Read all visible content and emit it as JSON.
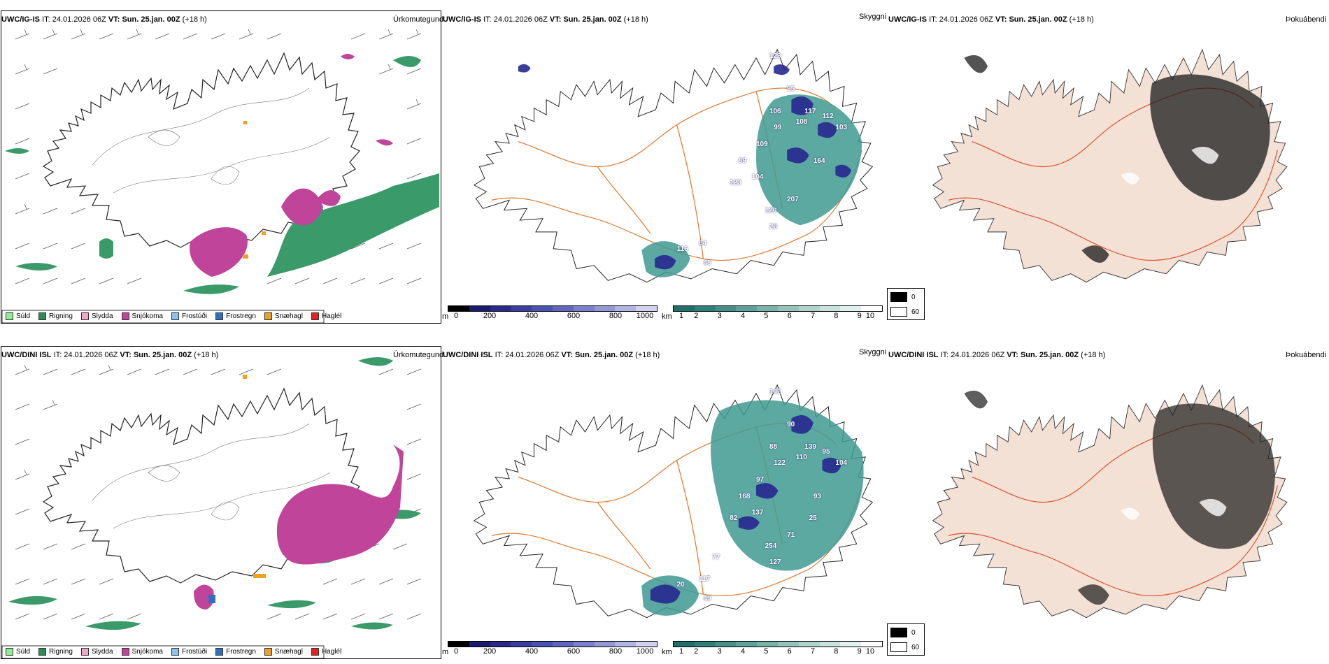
{
  "rows": [
    {
      "model": "UWC/IG-IS",
      "it_label": "IT:",
      "it_value": "24.01.2026 06Z",
      "vt_label": "VT:",
      "vt_value": "Sun. 25.jan. 00Z",
      "lead": "(+18 h)",
      "fields": [
        "Úrkomutegund",
        "Skyggni",
        "Þokuábendi"
      ],
      "visibility_numbers": [
        "129",
        "95",
        "106",
        "99",
        "108",
        "117",
        "112",
        "103",
        "109",
        "89",
        "104",
        "123",
        "207",
        "120",
        "26",
        "164",
        "116",
        "64",
        "48"
      ]
    },
    {
      "model": "UWC/DINI ISL",
      "it_label": "IT:",
      "it_value": "24.01.2026 06Z",
      "vt_label": "VT:",
      "vt_value": "Sun. 25.jan. 00Z",
      "lead": "(+18 h)",
      "fields": [
        "Úrkomutegund",
        "Skyggni",
        "Þokuábendi"
      ],
      "visibility_numbers": [
        "142",
        "90",
        "88",
        "122",
        "110",
        "139",
        "95",
        "104",
        "97",
        "168",
        "137",
        "82",
        "71",
        "254",
        "127",
        "93",
        "20",
        "117",
        "49",
        "77",
        "25"
      ]
    }
  ],
  "precip_legend": [
    {
      "label": "Súld",
      "color": "#90ee90"
    },
    {
      "label": "Rigning",
      "color": "#2e8b57"
    },
    {
      "label": "Slydda",
      "color": "#f4a6c8"
    },
    {
      "label": "Snjókoma",
      "color": "#c0449a"
    },
    {
      "label": "Frostúði",
      "color": "#8ec0f0"
    },
    {
      "label": "Frostregn",
      "color": "#2f6fbf"
    },
    {
      "label": "Snæhagl",
      "color": "#f0a020"
    },
    {
      "label": "Haglél",
      "color": "#e82020"
    }
  ],
  "height_colorbar": {
    "unit": "m",
    "ticks": [
      "0",
      "200",
      "400",
      "600",
      "800",
      "1000"
    ],
    "colors": [
      "#000000",
      "#1a1a6e",
      "#2a2a8a",
      "#3a3ea0",
      "#4a52b0",
      "#6066be",
      "#7a80cc",
      "#9498d8",
      "#b0b4e4",
      "#d0d2f0"
    ]
  },
  "distance_colorbar": {
    "unit": "km",
    "ticks": [
      "1",
      "2",
      "3",
      "4",
      "5",
      "6",
      "7",
      "8",
      "9",
      "10"
    ],
    "colors": [
      "#1f6f6a",
      "#2f807a",
      "#45918a",
      "#5da29a",
      "#78b3aa",
      "#93c4bb",
      "#aed4cc",
      "#c8e3dc",
      "#e0f0ec",
      "#ffffff"
    ]
  },
  "fog_legend": [
    {
      "label": "0",
      "color": "#000000"
    },
    {
      "label": "60",
      "color": "#ffffff"
    }
  ],
  "colors": {
    "rain": "#3a9a6a",
    "snow": "#c0449a",
    "ice_pellets": "#f0a020",
    "roads": "#e07a30",
    "land_fog": "#f3e1d6",
    "vis_low": "#27278f",
    "vis_mid": "#3f9a92"
  }
}
